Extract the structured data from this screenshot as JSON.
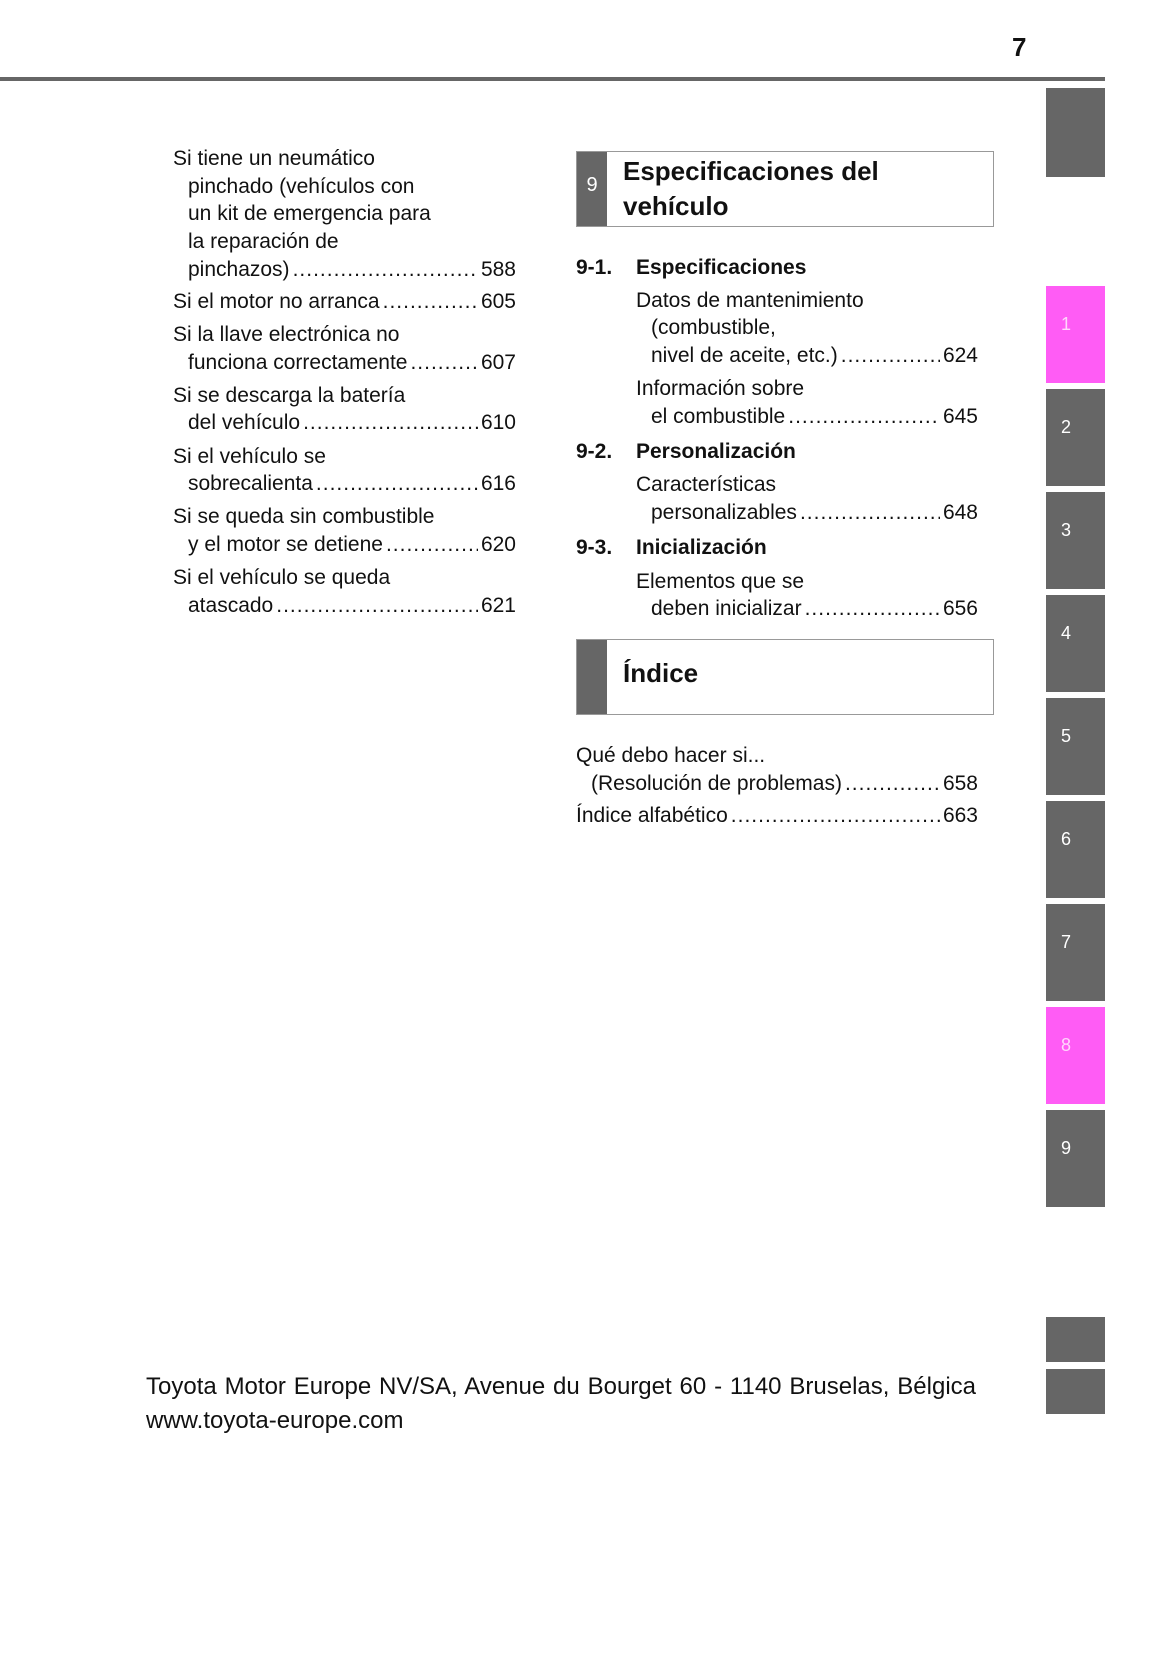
{
  "page_number": "7",
  "tabs": {
    "colors": {
      "gray": "#666666",
      "active": "#ff5cf5"
    },
    "items": [
      "1",
      "2",
      "3",
      "4",
      "5",
      "6",
      "7",
      "8",
      "9"
    ]
  },
  "left": [
    {
      "lines": [
        "Si tiene un neumático",
        "pinchado (vehículos con",
        "un kit de emergencia para",
        "la reparación de",
        "pinchazos)"
      ],
      "page": "588"
    },
    {
      "lines": [
        "Si el motor no arranca"
      ],
      "page": "605"
    },
    {
      "lines": [
        "Si la llave electrónica no",
        "funciona correctamente"
      ],
      "page": "607"
    },
    {
      "lines": [
        "Si se descarga la batería",
        "del vehículo"
      ],
      "page": "610"
    },
    {
      "lines": [
        "Si el vehículo se",
        "sobrecalienta"
      ],
      "page": "616"
    },
    {
      "lines": [
        "Si se queda sin combustible",
        "y el motor se detiene"
      ],
      "page": "620"
    },
    {
      "lines": [
        "Si el vehículo se queda",
        "atascado"
      ],
      "page": "621"
    }
  ],
  "chapter9": {
    "number": "9",
    "title_lines": [
      "Especificaciones del",
      "vehículo"
    ],
    "sections": [
      {
        "num": "9-1.",
        "title": "Especificaciones",
        "entries": [
          {
            "lines": [
              "Datos de mantenimiento",
              "(combustible,",
              "nivel de aceite, etc.)"
            ],
            "page": "624"
          },
          {
            "lines": [
              "Información sobre",
              "el combustible"
            ],
            "page": "645"
          }
        ]
      },
      {
        "num": "9-2.",
        "title": "Personalización",
        "entries": [
          {
            "lines": [
              "Características",
              "personalizables"
            ],
            "page": "648"
          }
        ]
      },
      {
        "num": "9-3.",
        "title": "Inicialización",
        "entries": [
          {
            "lines": [
              "Elementos que se",
              "deben inicializar"
            ],
            "page": "656"
          }
        ]
      }
    ]
  },
  "index": {
    "title": "Índice",
    "entries": [
      {
        "lines": [
          "Qué debo hacer si...",
          "(Resolución de problemas)"
        ],
        "page": "658"
      },
      {
        "lines": [
          "Índice alfabético"
        ],
        "page": "663"
      }
    ]
  },
  "footer": "Toyota Motor Europe NV/SA, Avenue du Bourget 60 - 1140 Bruselas, Bélgica www.toyota-europe.com"
}
